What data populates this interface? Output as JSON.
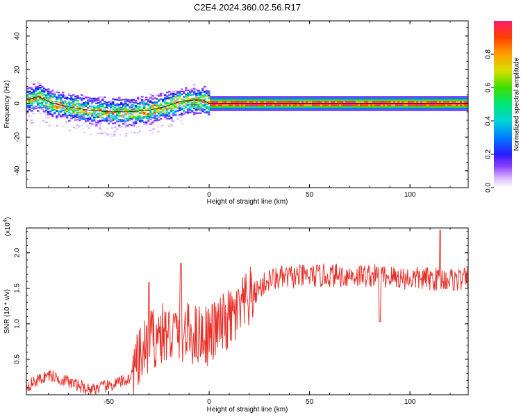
{
  "title": "C2E4.2024.360.02.56.R17",
  "chart_data": [
    {
      "type": "heatmap",
      "xlabel": "Height of straight line (km)",
      "ylabel": "Frequency (Hz)",
      "xlim": [
        -91,
        129
      ],
      "ylim": [
        -50,
        49
      ],
      "xticks": [
        -50,
        0,
        50,
        100
      ],
      "yticks": [
        -40,
        -20,
        0,
        20,
        40
      ],
      "colorbar": {
        "label": "Normalized spectral amplitude",
        "range": [
          0,
          1
        ],
        "ticks": [
          "0.0",
          "0.2",
          "0.4",
          "0.6",
          "0.8"
        ]
      },
      "ridge": [
        {
          "x": -91,
          "y": 2
        },
        {
          "x": -85,
          "y": 4
        },
        {
          "x": -78,
          "y": 0
        },
        {
          "x": -70,
          "y": -2
        },
        {
          "x": -60,
          "y": -4
        },
        {
          "x": -50,
          "y": -5
        },
        {
          "x": -40,
          "y": -5
        },
        {
          "x": -30,
          "y": -4
        },
        {
          "x": -22,
          "y": -2
        },
        {
          "x": -15,
          "y": 1
        },
        {
          "x": -8,
          "y": 2
        },
        {
          "x": -3,
          "y": 2
        },
        {
          "x": 0,
          "y": 0
        },
        {
          "x": 20,
          "y": 0
        },
        {
          "x": 60,
          "y": 0
        },
        {
          "x": 100,
          "y": 0
        },
        {
          "x": 129,
          "y": 0
        }
      ]
    },
    {
      "type": "line",
      "xlabel": "Height of straight line (km)",
      "ylabel": "SNR (10 * v/v)",
      "yscale_label": "(x10",
      "yscale_exp": "4",
      "xlim": [
        -91,
        129
      ],
      "ylim": [
        0,
        2.35
      ],
      "xticks": [
        -50,
        0,
        50,
        100
      ],
      "yticks": [
        "0.5",
        "1.0",
        "1.5",
        "2.0"
      ],
      "color": "#e8302a",
      "trend": [
        {
          "x": -91,
          "y": 0.12
        },
        {
          "x": -80,
          "y": 0.28
        },
        {
          "x": -70,
          "y": 0.18
        },
        {
          "x": -60,
          "y": 0.08
        },
        {
          "x": -50,
          "y": 0.12
        },
        {
          "x": -40,
          "y": 0.22
        },
        {
          "x": -35,
          "y": 0.45
        },
        {
          "x": -30,
          "y": 0.75
        },
        {
          "x": -25,
          "y": 0.85
        },
        {
          "x": -20,
          "y": 0.85
        },
        {
          "x": -15,
          "y": 0.9
        },
        {
          "x": -10,
          "y": 0.85
        },
        {
          "x": -5,
          "y": 0.85
        },
        {
          "x": 0,
          "y": 0.85
        },
        {
          "x": 5,
          "y": 0.95
        },
        {
          "x": 10,
          "y": 1.05
        },
        {
          "x": 15,
          "y": 1.15
        },
        {
          "x": 20,
          "y": 1.35
        },
        {
          "x": 25,
          "y": 1.5
        },
        {
          "x": 30,
          "y": 1.62
        },
        {
          "x": 40,
          "y": 1.66
        },
        {
          "x": 60,
          "y": 1.68
        },
        {
          "x": 80,
          "y": 1.68
        },
        {
          "x": 100,
          "y": 1.64
        },
        {
          "x": 129,
          "y": 1.62
        }
      ],
      "peaks": [
        {
          "x": -30,
          "y": 1.58
        },
        {
          "x": -14,
          "y": 1.85
        },
        {
          "x": 85,
          "y": 1.03
        },
        {
          "x": 115,
          "y": 2.32
        }
      ]
    }
  ]
}
